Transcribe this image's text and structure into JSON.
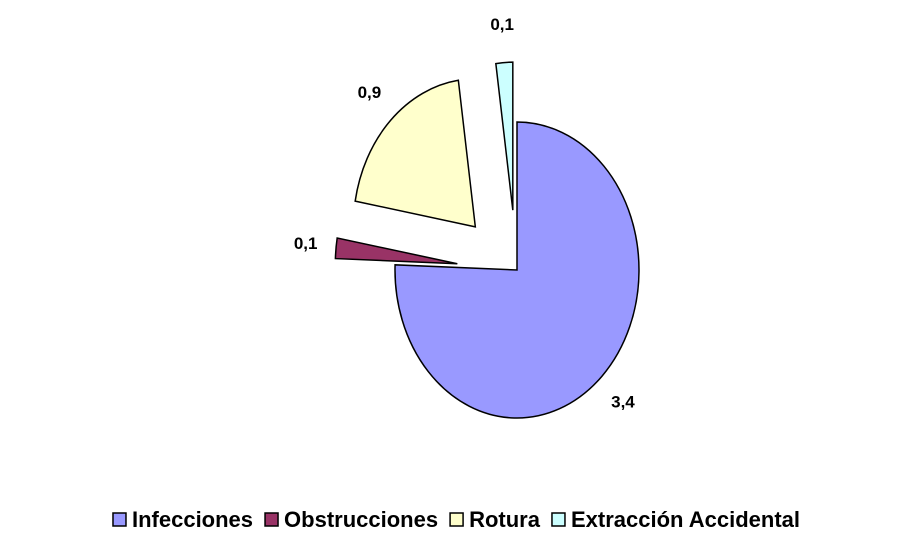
{
  "chart_data": {
    "type": "pie",
    "categories": [
      "Infecciones",
      "Obstrucciones",
      "Rotura",
      "Extracción Accidental"
    ],
    "values": [
      3.4,
      0.1,
      0.9,
      0.1
    ],
    "value_labels": [
      "3,4",
      "0,1",
      "0,9",
      "0,1"
    ],
    "colors": [
      "#9999ff",
      "#993366",
      "#ffffcc",
      "#ccffff"
    ]
  }
}
